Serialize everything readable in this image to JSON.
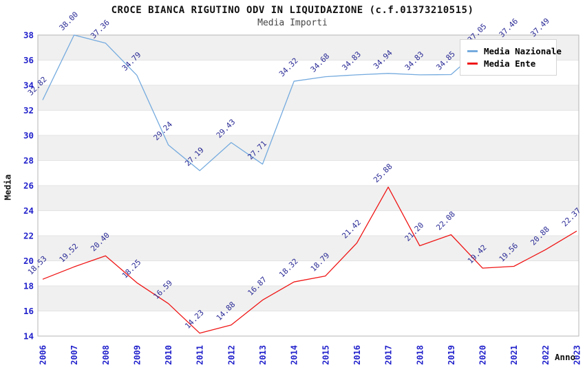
{
  "chart_data": {
    "type": "line",
    "title": "CROCE BIANCA RIGUTINO ODV IN LIQUIDAZIONE (c.f.01373210515)",
    "subtitle": "Media Importi",
    "xlabel": "Anno",
    "ylabel": "Media",
    "x": [
      2006,
      2007,
      2008,
      2009,
      2010,
      2011,
      2012,
      2013,
      2014,
      2015,
      2016,
      2017,
      2018,
      2019,
      2020,
      2021,
      2022,
      2023
    ],
    "series": [
      {
        "name": "Media Nazionale",
        "color": "#74aade",
        "values": [
          32.82,
          38.0,
          37.36,
          34.79,
          29.24,
          27.19,
          29.43,
          27.71,
          34.32,
          34.68,
          34.83,
          34.94,
          34.83,
          34.85,
          37.05,
          37.46,
          37.49,
          null
        ]
      },
      {
        "name": "Media Ente",
        "color": "#f01414",
        "values": [
          18.53,
          19.52,
          20.4,
          18.25,
          16.59,
          14.23,
          14.88,
          16.87,
          18.32,
          18.79,
          21.42,
          25.88,
          21.2,
          22.08,
          19.42,
          19.56,
          20.88,
          22.37
        ]
      }
    ],
    "ylim": [
      14,
      38
    ],
    "y_ticks": [
      14,
      16,
      18,
      20,
      22,
      24,
      26,
      28,
      30,
      32,
      34,
      36,
      38
    ],
    "grid": "alternating horizontal bands, gray on 16-18, 20-22, 24-26, 28-30, 32-34, 36-38",
    "legend_position": "top-right",
    "data_labels": "each point labeled with value, rotated 45deg, navy blue"
  },
  "colors": {
    "band_gray": "#f0f0f0",
    "grid_line": "#e3e3e3",
    "plot_border": "#b5b5b5",
    "tick_label_blue": "#2222cc",
    "data_label_navy": "#2a2a96",
    "series_blue": "#74aade",
    "series_red": "#f01414"
  }
}
